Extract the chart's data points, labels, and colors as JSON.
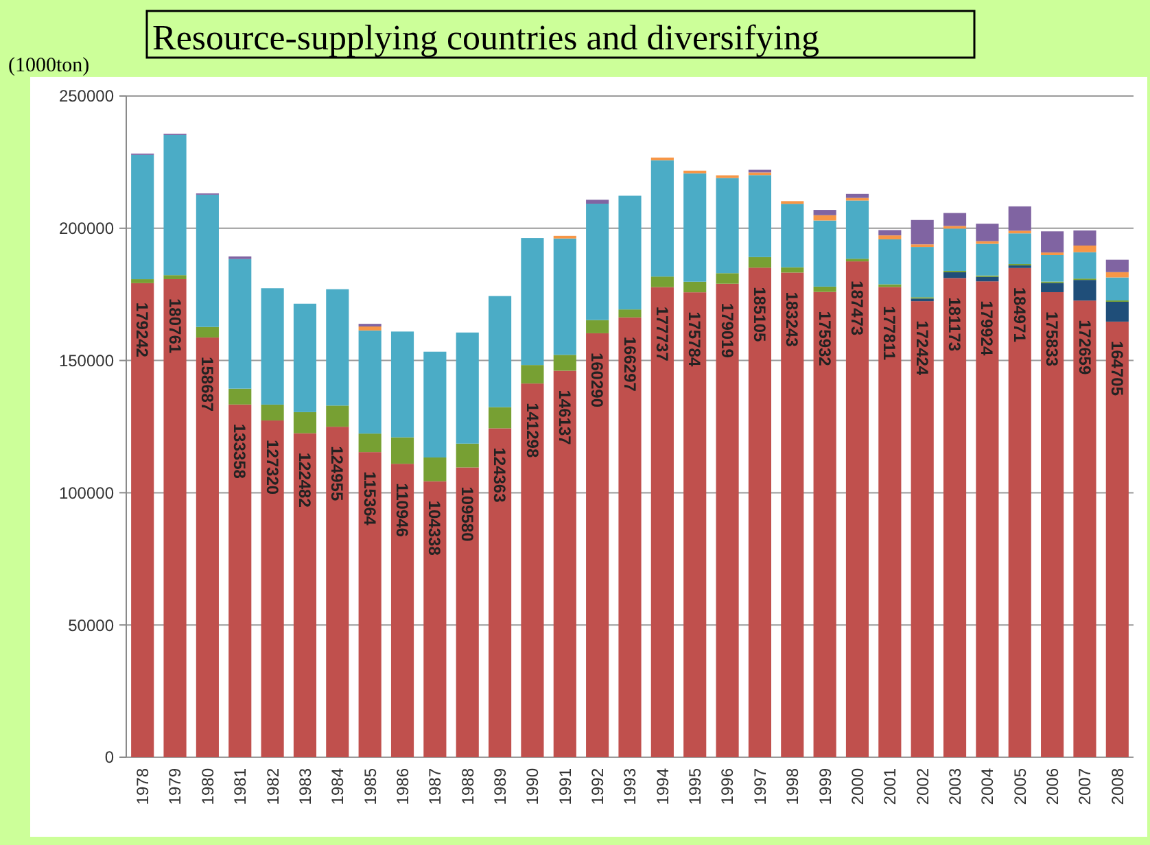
{
  "chart_data": {
    "type": "bar",
    "title": "Resource-supplying countries and diversifying",
    "ylabel": "(1000ton)",
    "stacked": true,
    "grid": "y",
    "ylim": [
      0,
      250000
    ],
    "yticks": [
      0,
      50000,
      100000,
      150000,
      200000,
      250000
    ],
    "categories": [
      "1978",
      "1979",
      "1980",
      "1981",
      "1982",
      "1983",
      "1984",
      "1985",
      "1986",
      "1987",
      "1988",
      "1989",
      "1990",
      "1991",
      "1992",
      "1993",
      "1994",
      "1995",
      "1996",
      "1997",
      "1998",
      "1999",
      "2000",
      "2001",
      "2002",
      "2003",
      "2004",
      "2005",
      "2006",
      "2007",
      "2008"
    ],
    "series": [
      {
        "color": "#c0504d",
        "values": [
          179242,
          180761,
          158687,
          133358,
          127320,
          122482,
          124955,
          115364,
          110946,
          104338,
          109580,
          124363,
          141298,
          146137,
          160290,
          166297,
          177737,
          175784,
          179019,
          185105,
          183243,
          175932,
          187473,
          177811,
          172424,
          181173,
          179924,
          184971,
          175833,
          172659,
          164705
        ],
        "value_labels": [
          "179242",
          "180761",
          "158687",
          "133358",
          "127320",
          "122482",
          "124955",
          "115364",
          "110946",
          "104338",
          "109580",
          "124363",
          "141298",
          "146137",
          "160290",
          "166297",
          "177737",
          "175784",
          "179019",
          "185105",
          "183243",
          "175932",
          "187473",
          "177811",
          "172424",
          "181173",
          "179924",
          "184971",
          "175833",
          "172659",
          "164705"
        ]
      },
      {
        "color": "#1f4e79",
        "values": [
          0,
          0,
          0,
          0,
          0,
          0,
          0,
          0,
          0,
          0,
          0,
          0,
          0,
          0,
          0,
          0,
          0,
          0,
          0,
          0,
          0,
          0,
          0,
          0,
          1000,
          2200,
          1700,
          1000,
          3500,
          7800,
          7500
        ]
      },
      {
        "color": "#77a033",
        "values": [
          1500,
          1500,
          4000,
          6000,
          6000,
          8000,
          8000,
          7000,
          10000,
          9000,
          9000,
          8000,
          7000,
          6000,
          5000,
          3000,
          4000,
          4000,
          4000,
          4000,
          2000,
          2000,
          1000,
          1000,
          500,
          500,
          500,
          500,
          500,
          500,
          500
        ]
      },
      {
        "color": "#4bacc6",
        "values": [
          47000,
          53000,
          50000,
          49000,
          44000,
          41000,
          44000,
          39000,
          40000,
          40000,
          42000,
          42000,
          48000,
          44000,
          44000,
          43000,
          44000,
          41000,
          36000,
          31000,
          24000,
          25000,
          22000,
          17000,
          19000,
          16000,
          12000,
          11600,
          10000,
          10000,
          8700
        ]
      },
      {
        "color": "#f79646",
        "values": [
          0,
          0,
          0,
          0,
          0,
          0,
          0,
          1500,
          0,
          0,
          0,
          0,
          0,
          1000,
          0,
          0,
          1000,
          1000,
          1000,
          1000,
          1000,
          2000,
          1000,
          1500,
          1000,
          1000,
          1000,
          1000,
          1000,
          2500,
          2000
        ]
      },
      {
        "color": "#8064a2",
        "values": [
          500,
          500,
          500,
          1000,
          0,
          0,
          0,
          1000,
          0,
          0,
          0,
          0,
          0,
          0,
          1500,
          0,
          0,
          0,
          0,
          1000,
          0,
          2000,
          1500,
          2000,
          9200,
          4900,
          6600,
          9200,
          8000,
          5700,
          4700
        ]
      }
    ]
  }
}
